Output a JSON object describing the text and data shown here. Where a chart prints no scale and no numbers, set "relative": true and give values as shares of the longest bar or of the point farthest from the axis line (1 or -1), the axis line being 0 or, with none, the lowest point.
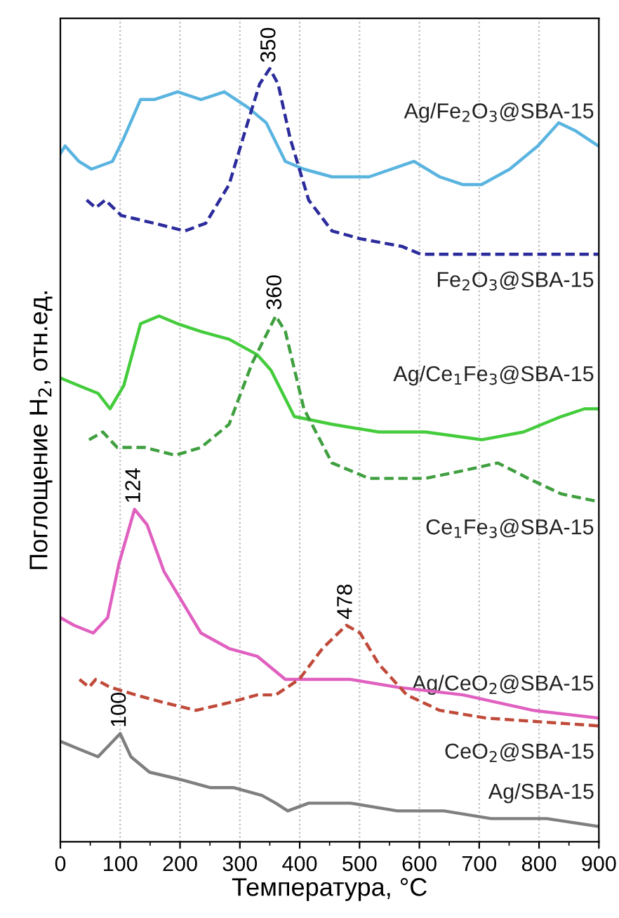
{
  "chart_data": {
    "type": "line",
    "relative": true,
    "xlabel": "Температура, °C",
    "ylabel": "Поглощение H$_{2}$, отн.ед.",
    "xlim": [
      0,
      900
    ],
    "xticks": [
      0,
      100,
      200,
      300,
      400,
      500,
      600,
      700,
      800,
      900
    ],
    "grid": "x",
    "marker": "none",
    "series": [
      {
        "name": "Ag/Fe$_{2}$O$_{3}$@SBA-15",
        "color": "#5ab4e0",
        "line_style": "solid",
        "x": [
          0,
          8,
          31,
          52,
          87,
          106,
          134,
          157,
          196,
          235,
          274,
          313,
          344,
          376,
          407,
          454,
          516,
          591,
          634,
          673,
          704,
          751,
          798,
          833,
          860,
          899
        ],
        "values": [
          0.89,
          0.9,
          0.88,
          0.87,
          0.88,
          0.91,
          0.96,
          0.96,
          0.97,
          0.96,
          0.97,
          0.95,
          0.93,
          0.88,
          0.87,
          0.86,
          0.86,
          0.88,
          0.86,
          0.85,
          0.85,
          0.87,
          0.9,
          0.93,
          0.92,
          0.9
        ]
      },
      {
        "name": "Fe$_{2}$O$_{3}$@SBA-15",
        "color": "#2b2b9c",
        "line_style": "dashed",
        "x": [
          44,
          59,
          75,
          102,
          157,
          208,
          243,
          282,
          313,
          333,
          350,
          364,
          384,
          415,
          454,
          501,
          571,
          602,
          673,
          720,
          829,
          899
        ],
        "values": [
          0.83,
          0.82,
          0.83,
          0.81,
          0.8,
          0.79,
          0.8,
          0.85,
          0.93,
          0.98,
          1.0,
          0.98,
          0.91,
          0.83,
          0.79,
          0.78,
          0.77,
          0.76,
          0.76,
          0.76,
          0.76,
          0.76
        ]
      },
      {
        "name": "Ag/Ce$_{1}$Fe$_{3}$@SBA-15",
        "color": "#44cc3c",
        "line_style": "solid",
        "x": [
          0,
          31,
          63,
          83,
          106,
          134,
          165,
          196,
          235,
          282,
          329,
          352,
          391,
          454,
          532,
          610,
          704,
          774,
          837,
          876,
          899
        ],
        "values": [
          0.6,
          0.59,
          0.58,
          0.56,
          0.59,
          0.67,
          0.68,
          0.67,
          0.66,
          0.65,
          0.63,
          0.61,
          0.55,
          0.54,
          0.53,
          0.53,
          0.52,
          0.53,
          0.55,
          0.56,
          0.56
        ]
      },
      {
        "name": "Ce$_{1}$Fe$_{3}$@SBA-15",
        "color": "#3f9f3f",
        "line_style": "dashed",
        "x": [
          48,
          71,
          95,
          141,
          192,
          235,
          282,
          321,
          360,
          376,
          407,
          454,
          516,
          610,
          673,
          731,
          782,
          837,
          899
        ],
        "values": [
          0.52,
          0.53,
          0.51,
          0.51,
          0.5,
          0.51,
          0.54,
          0.62,
          0.68,
          0.66,
          0.56,
          0.49,
          0.47,
          0.47,
          0.48,
          0.49,
          0.47,
          0.45,
          0.44
        ]
      },
      {
        "name": "Ag/CeO$_{2}$@SBA-15",
        "color": "#e060c0",
        "line_style": "solid",
        "x": [
          0,
          23,
          55,
          79,
          98,
          124,
          145,
          173,
          204,
          235,
          282,
          329,
          376,
          399,
          485,
          563,
          673,
          790,
          899
        ],
        "values": [
          0.29,
          0.28,
          0.27,
          0.29,
          0.36,
          0.43,
          0.41,
          0.35,
          0.31,
          0.27,
          0.25,
          0.24,
          0.21,
          0.21,
          0.21,
          0.2,
          0.19,
          0.17,
          0.16
        ]
      },
      {
        "name": "CeO$_{2}$@SBA-15",
        "color": "#c04a3a",
        "line_style": "dashed",
        "x": [
          32,
          48,
          59,
          83,
          126,
          173,
          227,
          282,
          329,
          360,
          399,
          438,
          478,
          501,
          532,
          579,
          634,
          712,
          899
        ],
        "values": [
          0.21,
          0.2,
          0.21,
          0.2,
          0.19,
          0.18,
          0.17,
          0.18,
          0.19,
          0.19,
          0.21,
          0.25,
          0.28,
          0.27,
          0.23,
          0.19,
          0.17,
          0.16,
          0.15
        ]
      },
      {
        "name": "Ag/SBA-15",
        "color": "#7f7f7f",
        "line_style": "solid",
        "x": [
          0,
          31,
          63,
          100,
          118,
          149,
          204,
          251,
          290,
          337,
          360,
          380,
          415,
          485,
          563,
          641,
          720,
          813,
          899
        ],
        "values": [
          0.13,
          0.12,
          0.11,
          0.14,
          0.11,
          0.09,
          0.08,
          0.07,
          0.07,
          0.06,
          0.05,
          0.04,
          0.05,
          0.05,
          0.04,
          0.04,
          0.03,
          0.03,
          0.02
        ]
      }
    ],
    "annotations": [
      {
        "text": "350",
        "x": 350,
        "y": 1.0
      },
      {
        "text": "360",
        "x": 360,
        "y": 0.68
      },
      {
        "text": "124",
        "x": 124,
        "y": 0.43
      },
      {
        "text": "478",
        "x": 478,
        "y": 0.28
      },
      {
        "text": "100",
        "x": 100,
        "y": 0.14
      }
    ]
  }
}
